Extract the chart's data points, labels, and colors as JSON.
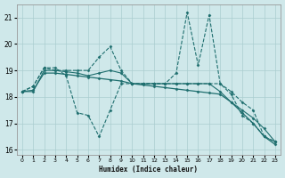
{
  "xlabel": "Humidex (Indice chaleur)",
  "bg_color": "#cfe8ea",
  "grid_color": "#aacdd0",
  "line_color": "#1e6e6e",
  "xlim": [
    -0.5,
    23.5
  ],
  "ylim": [
    15.8,
    21.5
  ],
  "yticks": [
    16,
    17,
    18,
    19,
    20,
    21
  ],
  "xticks": [
    0,
    1,
    2,
    3,
    4,
    5,
    6,
    7,
    8,
    9,
    10,
    11,
    12,
    13,
    14,
    15,
    16,
    17,
    18,
    19,
    20,
    21,
    22,
    23
  ],
  "series": [
    {
      "x": [
        0,
        1,
        2,
        3,
        4,
        5,
        6,
        7,
        8,
        9,
        10,
        11,
        12,
        13,
        14,
        15,
        16,
        17,
        18,
        19,
        20,
        21,
        22,
        23
      ],
      "y": [
        18.2,
        18.4,
        19.1,
        19.1,
        18.8,
        17.4,
        17.3,
        16.5,
        17.5,
        18.5,
        18.5,
        18.5,
        18.5,
        18.5,
        18.9,
        21.2,
        19.2,
        21.1,
        18.5,
        18.1,
        17.3,
        17.0,
        16.5,
        16.3
      ],
      "linestyle": "--",
      "lw": 0.8
    },
    {
      "x": [
        0,
        1,
        2,
        3,
        4,
        5,
        6,
        7,
        8,
        9,
        10,
        11,
        12,
        13,
        14,
        15,
        16,
        17,
        18,
        19,
        20,
        21,
        22,
        23
      ],
      "y": [
        18.2,
        18.4,
        19.1,
        19.0,
        19.0,
        19.0,
        19.0,
        19.5,
        19.9,
        19.0,
        18.5,
        18.5,
        18.5,
        18.5,
        18.5,
        18.5,
        18.5,
        18.5,
        18.5,
        18.2,
        17.8,
        17.5,
        16.5,
        16.3
      ],
      "linestyle": "--",
      "lw": 0.8
    },
    {
      "x": [
        0,
        1,
        2,
        3,
        4,
        5,
        6,
        7,
        8,
        9,
        10,
        11,
        12,
        13,
        14,
        15,
        16,
        17,
        18,
        19,
        20,
        21,
        22,
        23
      ],
      "y": [
        18.2,
        18.25,
        18.9,
        18.9,
        18.85,
        18.8,
        18.75,
        18.7,
        18.65,
        18.6,
        18.5,
        18.45,
        18.4,
        18.35,
        18.3,
        18.25,
        18.2,
        18.15,
        18.1,
        17.8,
        17.4,
        17.0,
        16.5,
        16.2
      ],
      "linestyle": "-",
      "lw": 0.9
    },
    {
      "x": [
        0,
        1,
        2,
        3,
        4,
        5,
        6,
        7,
        8,
        9,
        10,
        11,
        12,
        13,
        14,
        15,
        16,
        17,
        18,
        19,
        20,
        21,
        22,
        23
      ],
      "y": [
        18.2,
        18.2,
        19.0,
        19.0,
        18.95,
        18.9,
        18.8,
        18.9,
        19.0,
        18.9,
        18.5,
        18.5,
        18.5,
        18.5,
        18.5,
        18.5,
        18.5,
        18.5,
        18.2,
        17.8,
        17.5,
        17.2,
        16.8,
        16.3
      ],
      "linestyle": "-",
      "lw": 0.8
    }
  ]
}
